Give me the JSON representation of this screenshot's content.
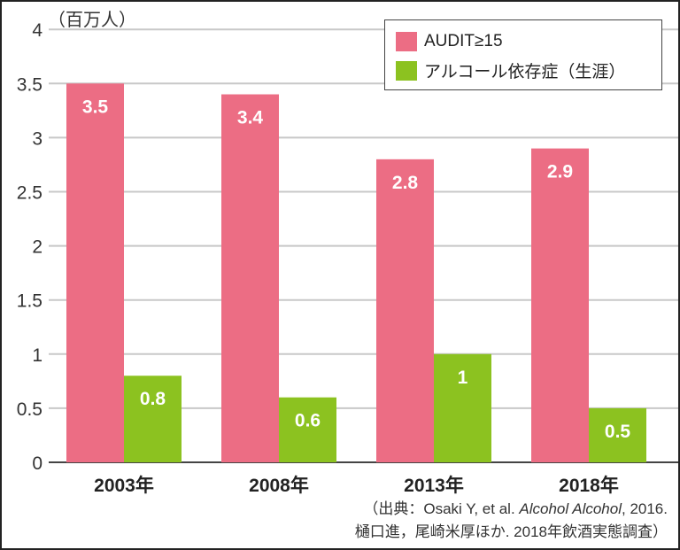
{
  "chart_data": {
    "type": "bar",
    "ylabel": "（百万人）",
    "ylim": [
      0,
      4
    ],
    "yticks": [
      "0",
      "0.5",
      "1",
      "1.5",
      "2",
      "2.5",
      "3",
      "3.5",
      "4"
    ],
    "categories": [
      "2003年",
      "2008年",
      "2013年",
      "2018年"
    ],
    "grid": true,
    "legend_position": "top-right",
    "series": [
      {
        "name": "AUDIT≥15",
        "color": "#ec6d84",
        "values": [
          3.5,
          3.4,
          2.8,
          2.9
        ],
        "labels": [
          "3.5",
          "3.4",
          "2.8",
          "2.9"
        ]
      },
      {
        "name": "アルコール依存症（生涯）",
        "color": "#8cc220",
        "values": [
          0.8,
          0.6,
          1,
          0.5
        ],
        "labels": [
          "0.8",
          "0.6",
          "1",
          "0.5"
        ]
      }
    ]
  },
  "source": {
    "line1_pre": "（出典：Osaki Y, et al. ",
    "line1_italic": "Alcohol Alcohol",
    "line1_post": ", 2016.",
    "line2": "樋口進，尾崎米厚ほか. 2018年飲酒実態調査）"
  }
}
